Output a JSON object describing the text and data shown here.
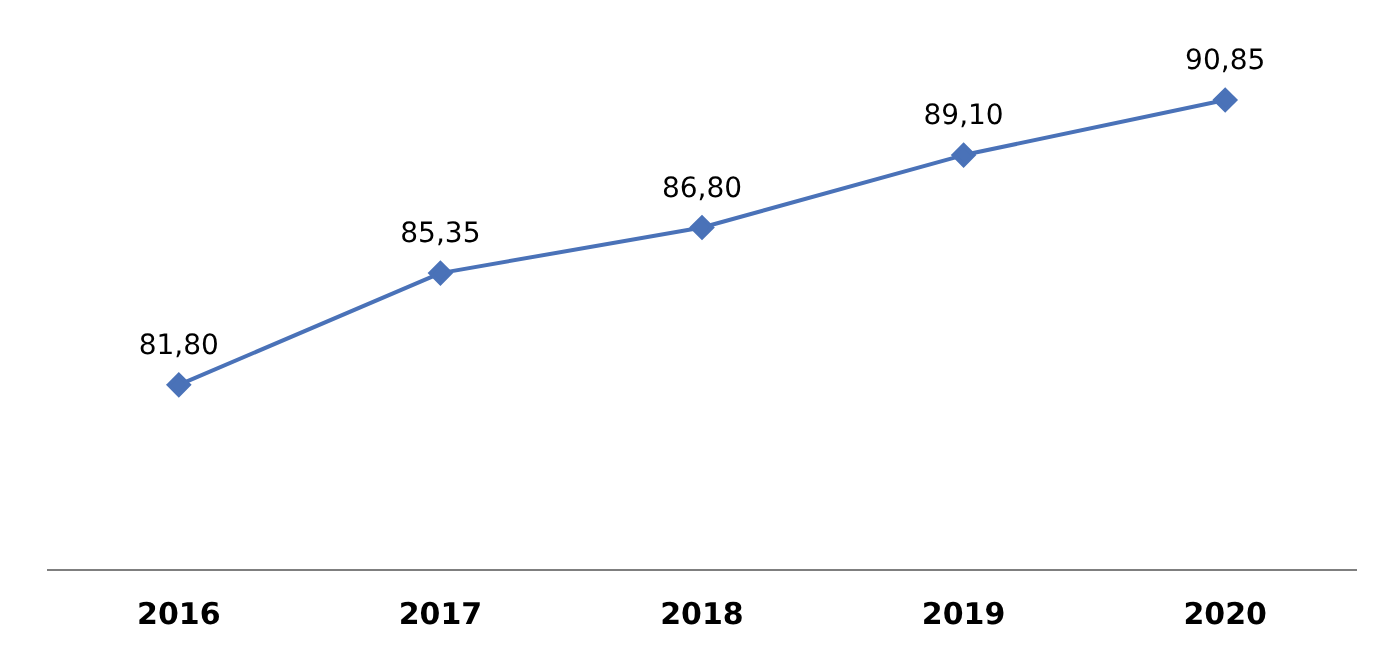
{
  "chart_data": {
    "type": "line",
    "categories": [
      "2016",
      "2017",
      "2018",
      "2019",
      "2020"
    ],
    "series": [
      {
        "color": "#4a72b8",
        "values": [
          81.8,
          85.35,
          86.8,
          89.1,
          90.85
        ],
        "value_labels": [
          "81,80",
          "85,35",
          "86,80",
          "89,10",
          "90,85"
        ]
      }
    ],
    "tick_labels": "x",
    "grid": false,
    "legend": false,
    "marker": "diamond",
    "line_style": "solid"
  }
}
